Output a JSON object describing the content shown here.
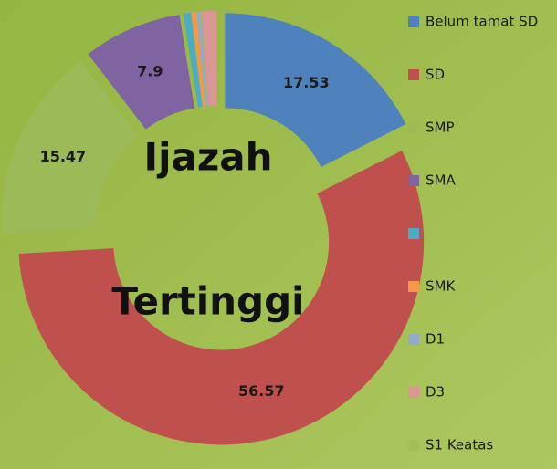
{
  "chart_data": {
    "type": "donut",
    "annotations": [
      "Ijazah",
      "Tertinggi"
    ],
    "categories": [
      "Belum tamat SD",
      "SD",
      "SMP",
      "SMA",
      null,
      "SMK",
      "D1",
      "D3",
      "S1 Keatas"
    ],
    "values": [
      17.53,
      56.57,
      15.47,
      7.9,
      0.6,
      0.4,
      0.3,
      1.2,
      0.03
    ],
    "colors": [
      "#4f81bd",
      "#c0504d",
      "#9bbb59",
      "#8064a2",
      "#4bacc6",
      "#f79646",
      "#93a9cf",
      "#d99694",
      "#a3bf55"
    ],
    "legend": "right"
  }
}
